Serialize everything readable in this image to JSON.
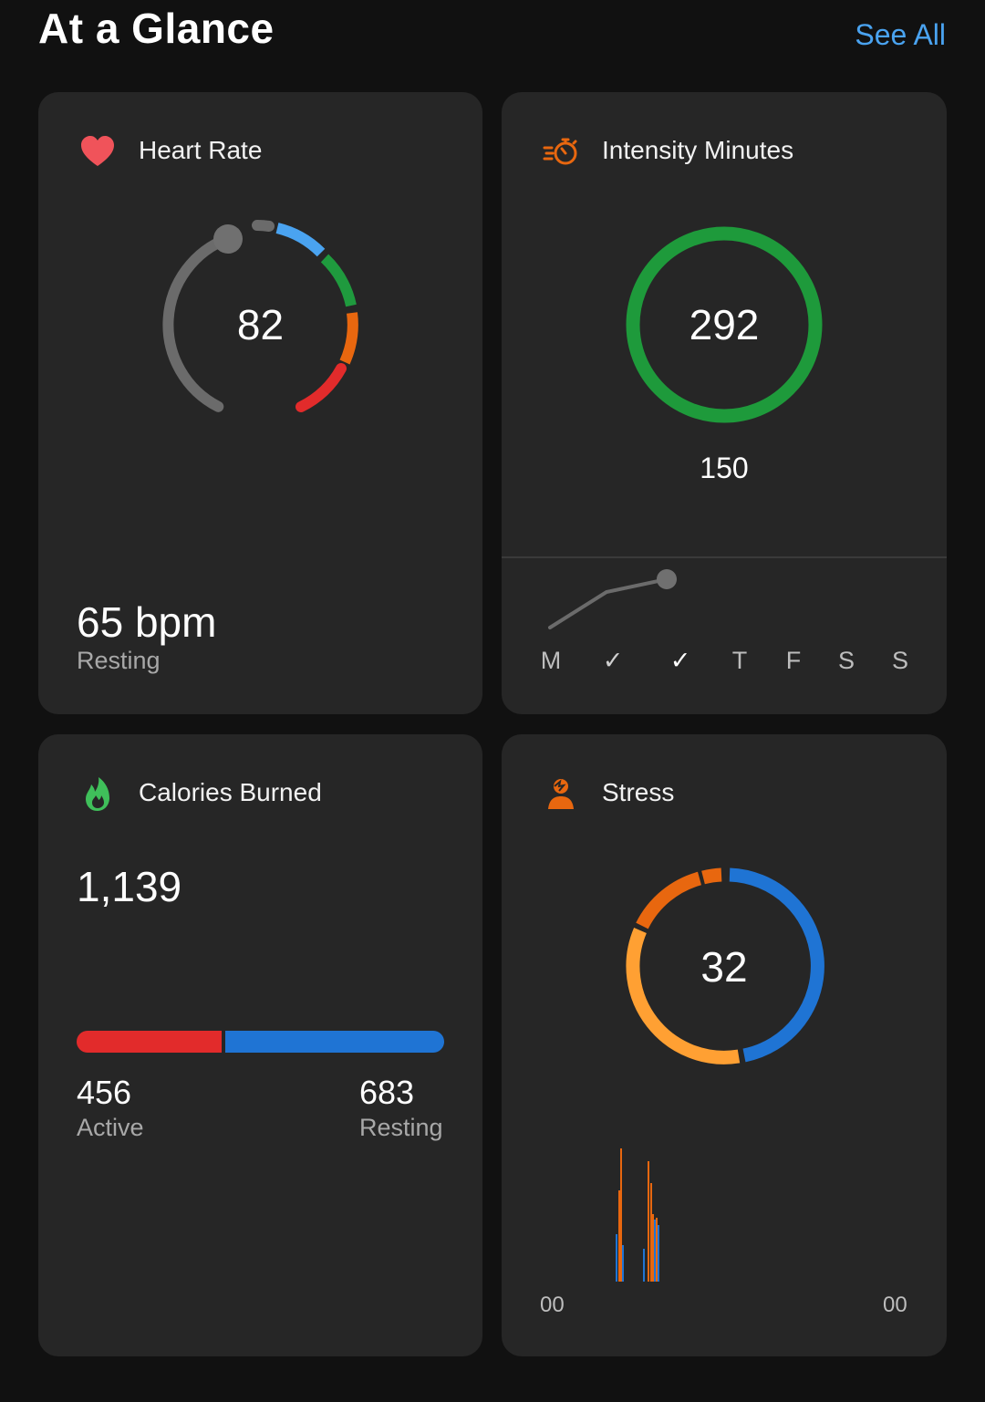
{
  "header": {
    "title": "At a Glance",
    "see_all": "See All"
  },
  "heart_rate": {
    "title": "Heart Rate",
    "current": "82",
    "resting_value": "65 bpm",
    "resting_label": "Resting",
    "icon": "heart-icon",
    "colors": {
      "icon": "#f0535a",
      "zone1": "#4aa3f0",
      "zone2": "#1f9a3e",
      "zone3": "#e8670f",
      "zone4": "#e22b2b",
      "base": "#6b6b6b"
    }
  },
  "intensity": {
    "title": "Intensity Minutes",
    "value": "292",
    "goal": "150",
    "icon": "stopwatch-icon",
    "ring_color": "#1e9a3b",
    "days": [
      "M",
      "✓",
      "✓",
      "T",
      "F",
      "S",
      "S"
    ]
  },
  "calories": {
    "title": "Calories Burned",
    "total": "1,139",
    "active_value": "456",
    "active_label": "Active",
    "resting_value": "683",
    "resting_label": "Resting",
    "icon": "flame-icon",
    "active_fraction": 0.4,
    "colors": {
      "active": "#e22b2b",
      "resting": "#1f74d4"
    }
  },
  "stress": {
    "title": "Stress",
    "value": "32",
    "icon": "stress-person-icon",
    "axis_start": "00",
    "axis_end": "00",
    "colors": {
      "rest": "#1f74d4",
      "low": "#ffa033",
      "medium": "#e8670f"
    }
  }
}
